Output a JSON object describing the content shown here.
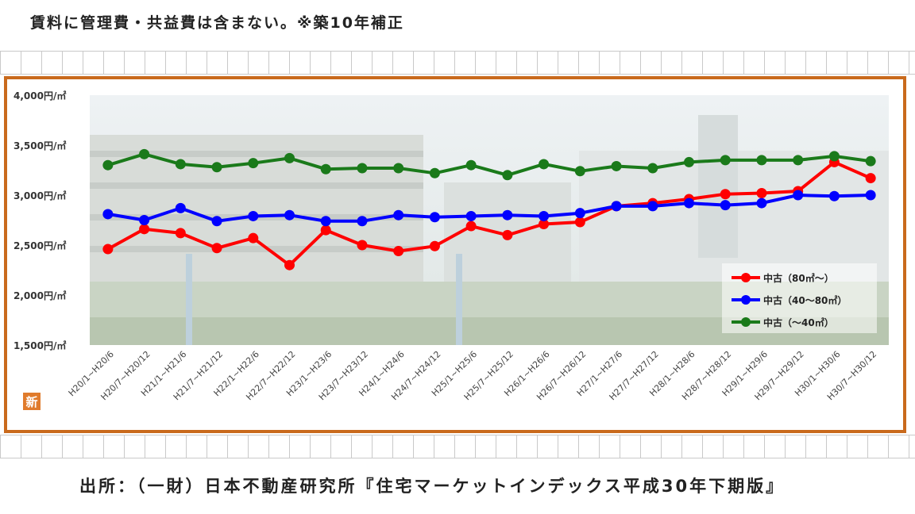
{
  "note": "賃料に管理費・共益費は含まない。※築10年補正",
  "source": "出所：（一財）日本不動産研究所『住宅マーケットインデックス平成30年下期版』",
  "badge": "新",
  "chart_data": {
    "type": "line",
    "categories": [
      "H20/1~H20/6",
      "H20/7~H20/12",
      "H21/1~H21/6",
      "H21/7~H21/12",
      "H22/1~H22/6",
      "H22/7~H22/12",
      "H23/1~H23/6",
      "H23/7~H23/12",
      "H24/1~H24/6",
      "H24/7~H24/12",
      "H25/1~H25/6",
      "H25/7~H25/12",
      "H26/1~H26/6",
      "H26/7~H26/12",
      "H27/1~H27/6",
      "H27/7~H27/12",
      "H28/1~H28/6",
      "H28/7~H28/12",
      "H29/1~H29/6",
      "H29/7~H29/12",
      "H30/1~H30/6",
      "H30/7~H30/12"
    ],
    "ylim": [
      1500,
      4000
    ],
    "yticks": [
      "1,500円/㎡",
      "2,000円/㎡",
      "2,500円/㎡",
      "3,000円/㎡",
      "3,500円/㎡",
      "4,000円/㎡"
    ],
    "legend_position": "bottom-right",
    "series": [
      {
        "name": "中古（80㎡～）",
        "color": "#ff0000",
        "values": [
          2460,
          2660,
          2620,
          2470,
          2570,
          2300,
          2650,
          2500,
          2440,
          2490,
          2690,
          2600,
          2710,
          2730,
          2890,
          2920,
          2960,
          3010,
          3020,
          3040,
          3330,
          3170
        ]
      },
      {
        "name": "中古（40～80㎡）",
        "color": "#0000ff",
        "values": [
          2810,
          2750,
          2870,
          2740,
          2790,
          2800,
          2740,
          2740,
          2800,
          2780,
          2790,
          2800,
          2790,
          2820,
          2890,
          2890,
          2920,
          2900,
          2920,
          3000,
          2990,
          3000
        ]
      },
      {
        "name": "中古（～40㎡）",
        "color": "#1a7a1a",
        "values": [
          3300,
          3410,
          3310,
          3280,
          3320,
          3370,
          3260,
          3270,
          3270,
          3220,
          3300,
          3200,
          3310,
          3240,
          3290,
          3270,
          3330,
          3350,
          3350,
          3350,
          3390,
          3340
        ]
      }
    ]
  }
}
